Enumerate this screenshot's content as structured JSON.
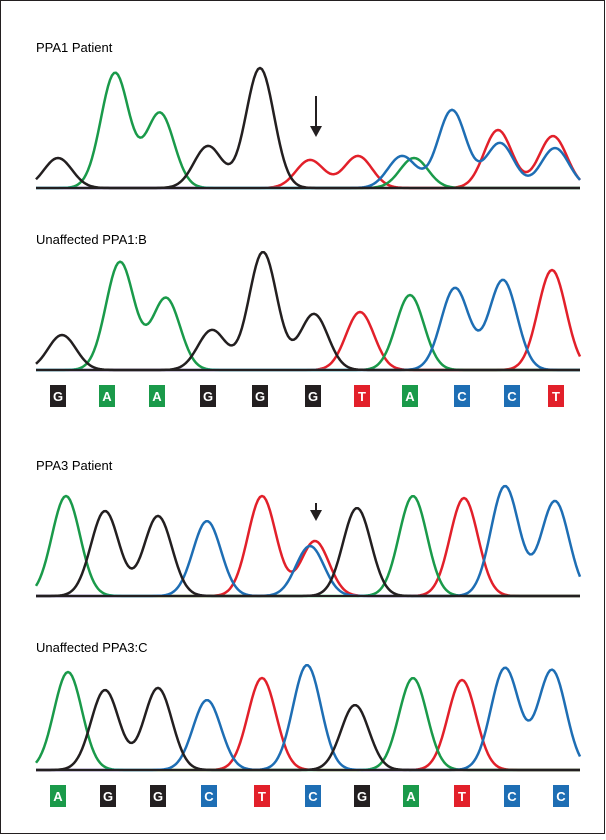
{
  "panels": [
    {
      "title": "PPA1 Patient"
    },
    {
      "title": "Unaffected PPA1:B"
    },
    {
      "title": "PPA3 Patient"
    },
    {
      "title": "Unaffected PPA3:C"
    }
  ],
  "sequences": [
    {
      "bases": [
        "G",
        "A",
        "A",
        "G",
        "G",
        "G",
        "T",
        "A",
        "C",
        "C",
        "T"
      ]
    },
    {
      "bases": [
        "A",
        "G",
        "G",
        "C",
        "T",
        "C",
        "G",
        "A",
        "T",
        "C",
        "C"
      ]
    }
  ],
  "base_colors": {
    "G": "#231f20",
    "A": "#1a9a4a",
    "C": "#1e6eb4",
    "T": "#e2202a"
  }
}
